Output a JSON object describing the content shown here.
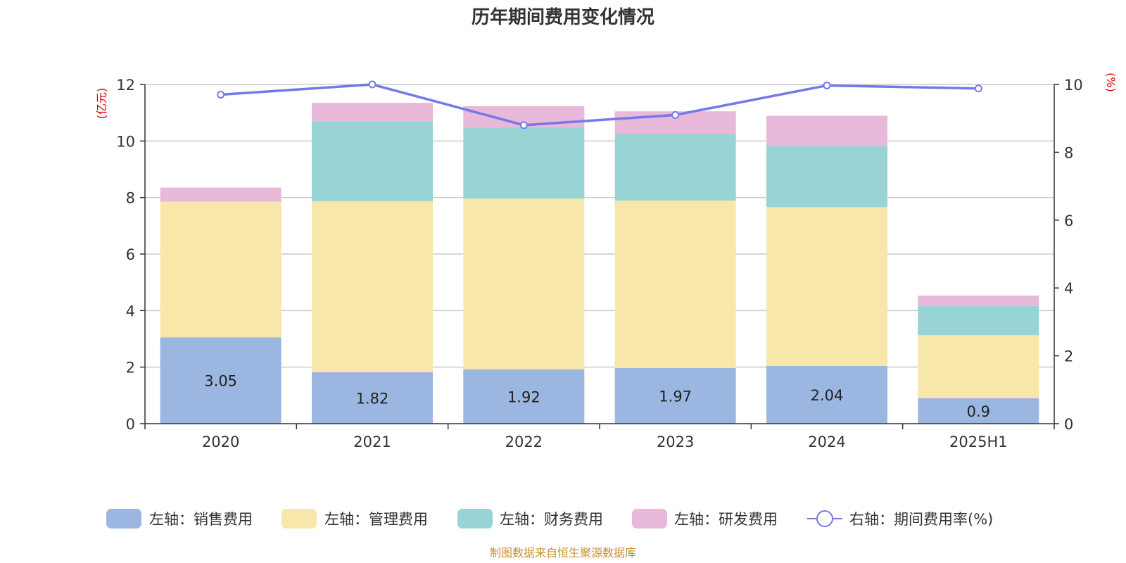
{
  "title": "历年期间费用变化情况",
  "footer": "制图数据来自恒生聚源数据库",
  "left_unit": "(亿元)",
  "right_unit": "(%)",
  "chart_data": {
    "type": "bar",
    "stacked": true,
    "categories": [
      "2020",
      "2021",
      "2022",
      "2023",
      "2024",
      "2025H1"
    ],
    "series": [
      {
        "name": "左轴：销售费用",
        "axis": "left",
        "color": "#9bb7e1",
        "values": [
          3.05,
          1.82,
          1.92,
          1.97,
          2.04,
          0.9
        ],
        "show_labels": true
      },
      {
        "name": "左轴：管理费用",
        "axis": "left",
        "color": "#f7e7a8",
        "values": [
          4.8,
          6.05,
          6.04,
          5.92,
          5.62,
          2.23
        ],
        "show_labels": false
      },
      {
        "name": "左轴：财务费用",
        "axis": "left",
        "color": "#98d4d5",
        "values": [
          0.0,
          2.83,
          2.52,
          2.36,
          2.16,
          1.03
        ],
        "show_labels": false
      },
      {
        "name": "左轴：研发费用",
        "axis": "left",
        "color": "#e8b9d8",
        "values": [
          0.5,
          0.65,
          0.75,
          0.8,
          1.07,
          0.37
        ],
        "show_labels": false
      }
    ],
    "line": {
      "name": "右轴：期间费用率(%)",
      "axis": "right",
      "color": "#7479ea",
      "values": [
        9.7,
        10.0,
        8.8,
        9.1,
        9.97,
        9.88
      ]
    },
    "left_axis": {
      "min": 0,
      "max": 12,
      "ticks": [
        "0",
        "2",
        "4",
        "6",
        "8",
        "10",
        "12"
      ]
    },
    "right_axis": {
      "min": 0,
      "max": 10,
      "ticks": [
        "0",
        "2",
        "4",
        "6",
        "8",
        "10"
      ]
    },
    "grid": true,
    "legend_position": "bottom"
  }
}
